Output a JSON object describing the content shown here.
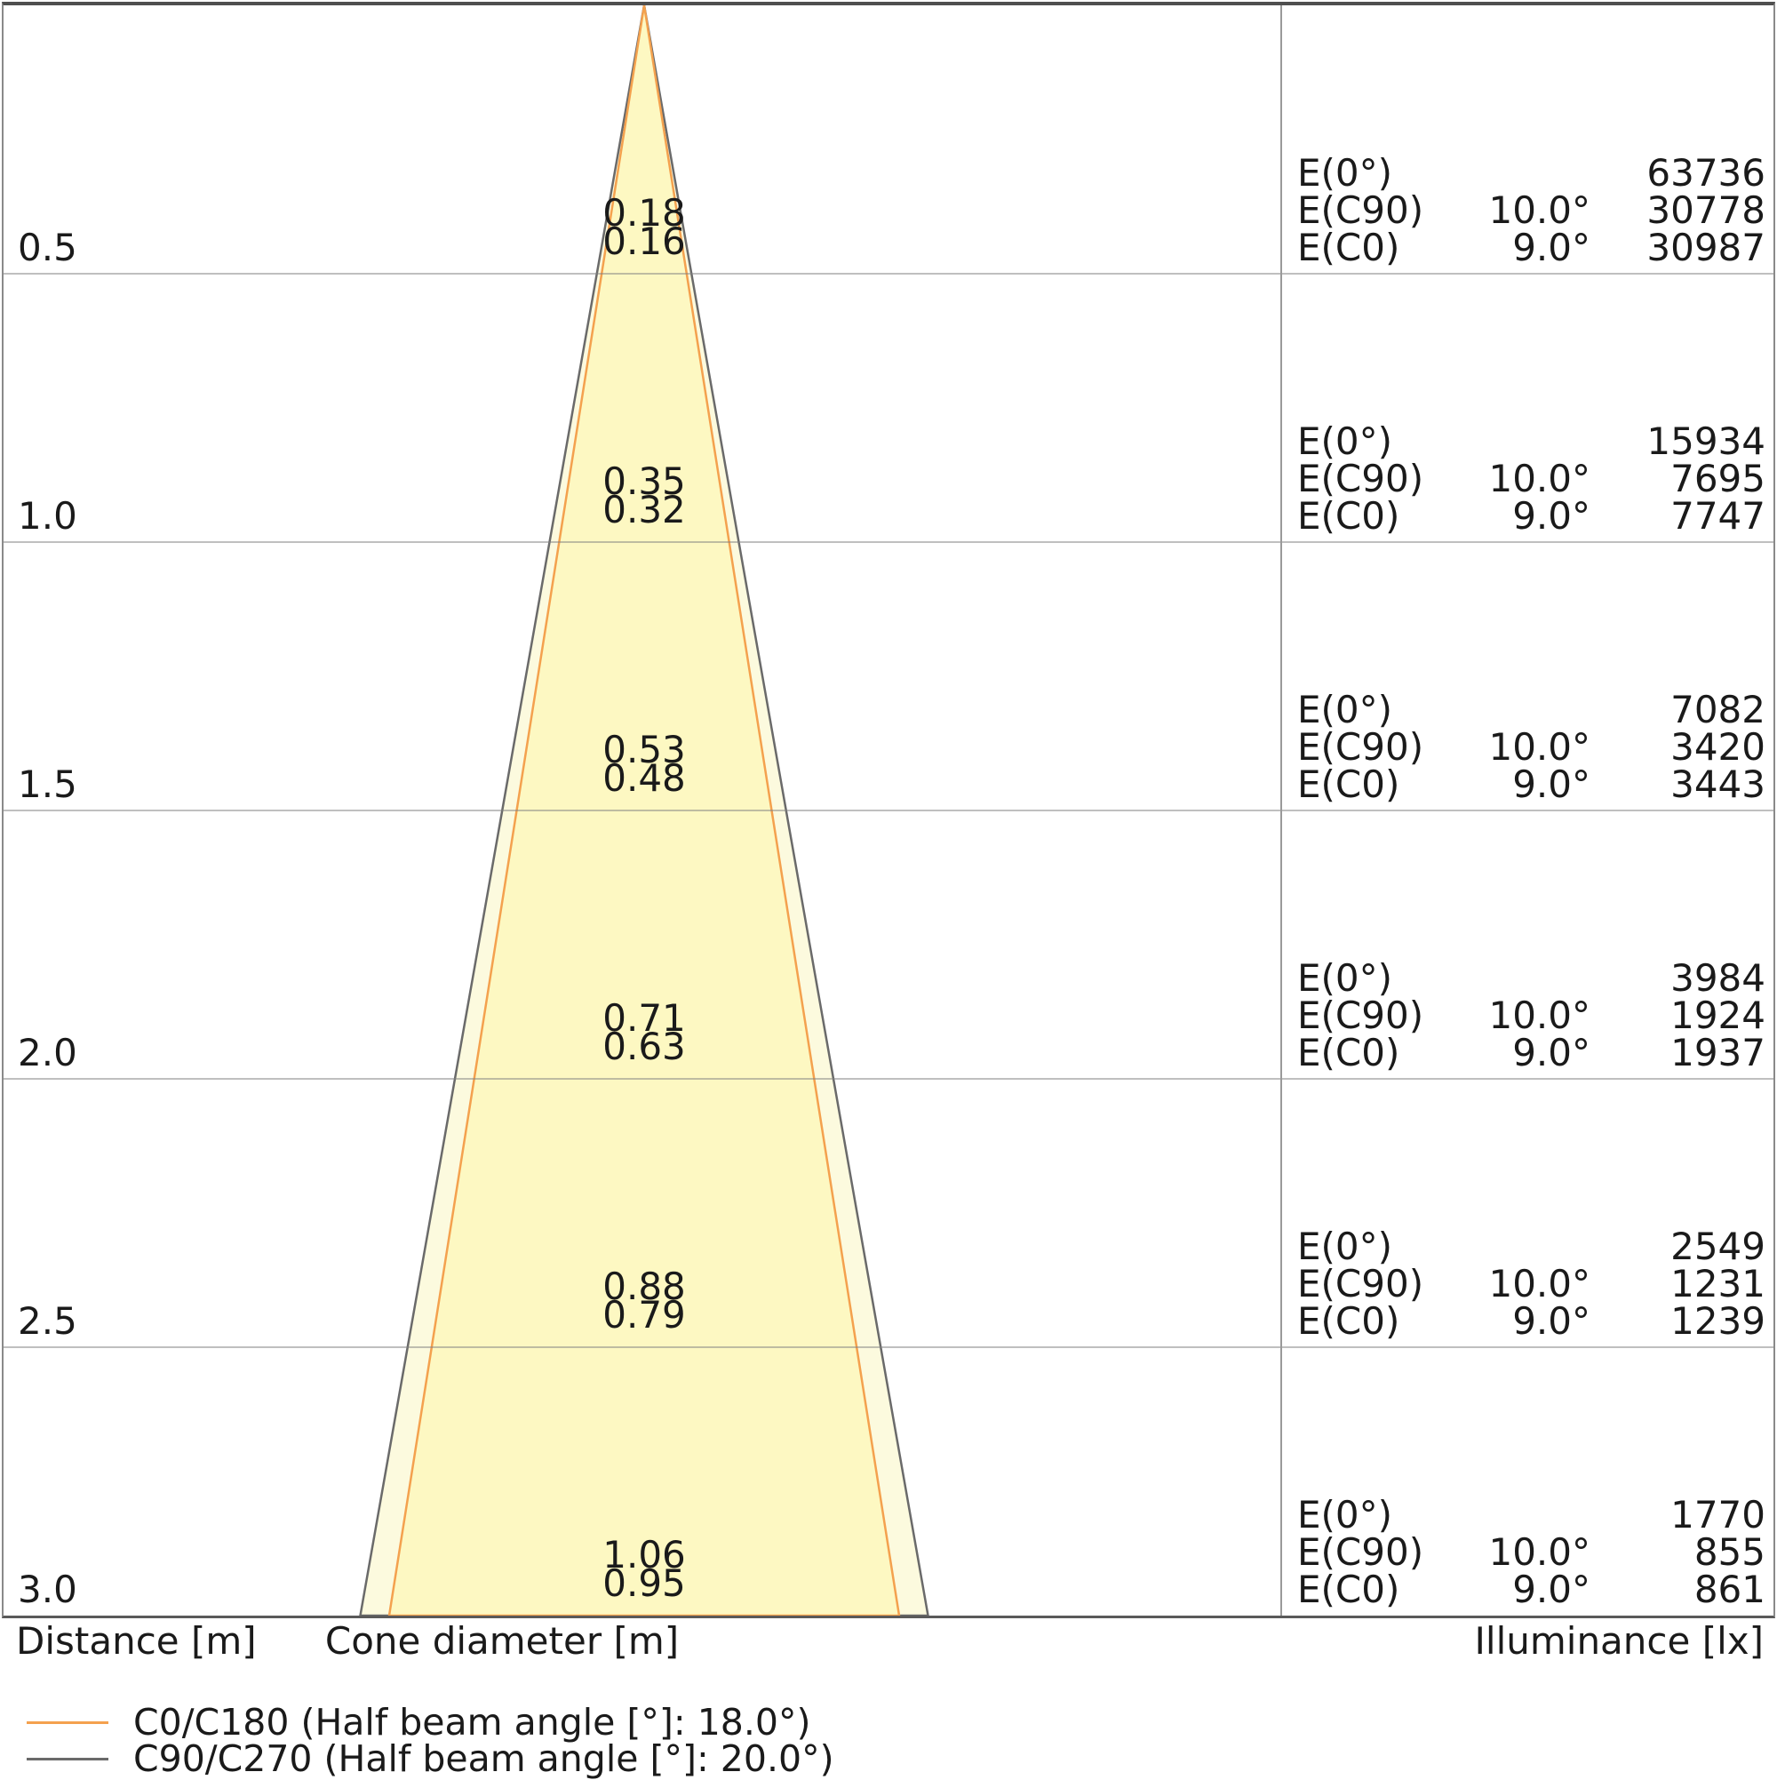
{
  "footer": {
    "distance_axis_label": "Distance [m]",
    "cone_diameter_axis_label": "Cone diameter [m]",
    "illuminance_axis_label": "Illuminance [lx]"
  },
  "legend": [
    {
      "label": "C0/C180 (Half beam angle [°]: 18.0°)",
      "color": "#f4a14e"
    },
    {
      "label": "C90/C270 (Half beam angle [°]: 20.0°)",
      "color": "#6a6a6a"
    }
  ],
  "table_labels": {
    "e0": "E(0°)",
    "ec90": "E(C90)",
    "ec0": "E(C0)"
  },
  "chart_data": {
    "type": "area",
    "description": "Photometric light cone diagram: beam cone cross-section with cone diameters and illuminance table per mounting distance",
    "y_axis": {
      "label": "Distance [m]",
      "ticks": [
        "0.5",
        "1.0",
        "1.5",
        "2.0",
        "2.5",
        "3.0"
      ],
      "range_m": [
        0,
        3.0
      ],
      "direction": "downward"
    },
    "x_axis": {
      "label": "Cone diameter [m]"
    },
    "grid": true,
    "legend_position": "bottom-left",
    "illuminance_unit": "lx",
    "series": [
      {
        "name": "C0/C180",
        "half_beam_angle_deg": 18.0,
        "legend": "C0/C180 (Half beam angle [°]: 18.0°)",
        "line_color": "#f4a14e",
        "fill_color": "#fdf8c2",
        "cone_diameter_m": [
          0.16,
          0.32,
          0.48,
          0.63,
          0.79,
          0.95
        ]
      },
      {
        "name": "C90/C270",
        "half_beam_angle_deg": 20.0,
        "legend": "C90/C270 (Half beam angle [°]: 20.0°)",
        "line_color": "#6a6a6a",
        "fill_color": "#fcfade",
        "cone_diameter_m": [
          0.18,
          0.35,
          0.53,
          0.71,
          0.88,
          1.06
        ]
      }
    ],
    "rows": [
      {
        "distance": "0.5",
        "cone_c90": "0.18",
        "cone_c0": "0.16",
        "e0": "63736",
        "ec90_angle": "10.0°",
        "ec90": "30778",
        "ec0_angle": "9.0°",
        "ec0": "30987"
      },
      {
        "distance": "1.0",
        "cone_c90": "0.35",
        "cone_c0": "0.32",
        "e0": "15934",
        "ec90_angle": "10.0°",
        "ec90": "7695",
        "ec0_angle": "9.0°",
        "ec0": "7747"
      },
      {
        "distance": "1.5",
        "cone_c90": "0.53",
        "cone_c0": "0.48",
        "e0": "7082",
        "ec90_angle": "10.0°",
        "ec90": "3420",
        "ec0_angle": "9.0°",
        "ec0": "3443"
      },
      {
        "distance": "2.0",
        "cone_c90": "0.71",
        "cone_c0": "0.63",
        "e0": "3984",
        "ec90_angle": "10.0°",
        "ec90": "1924",
        "ec0_angle": "9.0°",
        "ec0": "1937"
      },
      {
        "distance": "2.5",
        "cone_c90": "0.88",
        "cone_c0": "0.79",
        "e0": "2549",
        "ec90_angle": "10.0°",
        "ec90": "1231",
        "ec0_angle": "9.0°",
        "ec0": "1239"
      },
      {
        "distance": "3.0",
        "cone_c90": "1.06",
        "cone_c0": "0.95",
        "e0": "1770",
        "ec90_angle": "10.0°",
        "ec90": "855",
        "ec0_angle": "9.0°",
        "ec0": "861"
      }
    ]
  },
  "colors": {
    "grid_line": "#808080",
    "divider_line": "#9a9a9a",
    "text": "#1a1a1a",
    "background": "#ffffff"
  }
}
